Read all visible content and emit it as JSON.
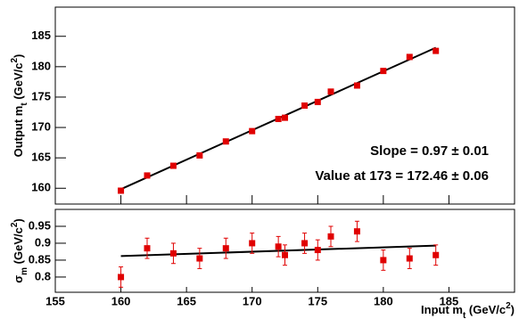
{
  "chart_data": [
    {
      "type": "scatter",
      "ylabel": [
        {
          "text": "Output m"
        },
        {
          "text": "t",
          "shift": "sub"
        },
        {
          "text": " (GeV/c"
        },
        {
          "text": "2",
          "shift": "sup"
        },
        {
          "text": ")"
        }
      ],
      "x": [
        160,
        162,
        164,
        166,
        168,
        170,
        172,
        172.5,
        174,
        175,
        176,
        178,
        180,
        182,
        184
      ],
      "series": [
        {
          "color": "#e00000",
          "values": [
            159.6,
            162.1,
            163.7,
            165.4,
            167.7,
            169.4,
            171.4,
            171.6,
            173.6,
            174.2,
            175.9,
            176.9,
            179.3,
            181.6,
            182.6
          ]
        }
      ],
      "fit": {
        "x": [
          160,
          184
        ],
        "y": [
          159.85,
          183.13
        ]
      },
      "annotations": [
        "Slope = 0.97 ± 0.01",
        "Value at 173 = 172.46 ± 0.06"
      ],
      "xlim": [
        155,
        190
      ],
      "ylim": [
        157.4,
        189.8
      ],
      "xticks": [
        155,
        160,
        165,
        170,
        175,
        180,
        185
      ],
      "xtick_labels": false,
      "yticks": [
        160,
        165,
        170,
        175,
        180,
        185
      ]
    },
    {
      "type": "errorbar",
      "ylabel": [
        {
          "text": "σ"
        },
        {
          "text": "m",
          "shift": "sub"
        },
        {
          "text": " (GeV/c"
        },
        {
          "text": "2",
          "shift": "sup"
        },
        {
          "text": ")"
        }
      ],
      "xlabel": [
        {
          "text": "Input m"
        },
        {
          "text": "t",
          "shift": "sub"
        },
        {
          "text": " (GeV/c"
        },
        {
          "text": "2",
          "shift": "sup"
        },
        {
          "text": ")"
        }
      ],
      "x": [
        160,
        162,
        164,
        166,
        168,
        170,
        172,
        172.5,
        174,
        175,
        176,
        178,
        180,
        182,
        184
      ],
      "series": [
        {
          "color": "#e00000",
          "values": [
            0.8,
            0.885,
            0.87,
            0.855,
            0.885,
            0.9,
            0.89,
            0.865,
            0.9,
            0.88,
            0.92,
            0.935,
            0.85,
            0.855,
            0.865
          ],
          "errors": [
            0.03,
            0.03,
            0.03,
            0.03,
            0.03,
            0.03,
            0.03,
            0.03,
            0.03,
            0.03,
            0.03,
            0.03,
            0.03,
            0.03,
            0.03
          ]
        }
      ],
      "fit": {
        "x": [
          160,
          184
        ],
        "y": [
          0.862,
          0.893
        ]
      },
      "xlim": [
        155,
        190
      ],
      "ylim": [
        0.755,
        1.0
      ],
      "xticks": [
        155,
        160,
        165,
        170,
        175,
        180,
        185
      ],
      "xtick_labels": true,
      "yticks": [
        0.8,
        0.85,
        0.9,
        0.95
      ]
    }
  ]
}
